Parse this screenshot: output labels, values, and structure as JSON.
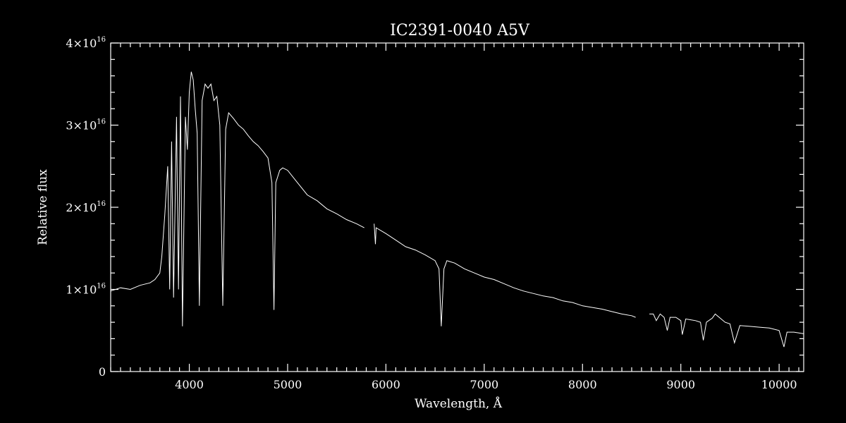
{
  "chart_data": {
    "type": "line",
    "title": "IC2391-0040   A5V",
    "xlabel": "Wavelength, Å",
    "ylabel": "Relative flux",
    "xlim": [
      3200,
      10250
    ],
    "ylim": [
      0,
      4e+16
    ],
    "x_ticks": [
      4000,
      5000,
      6000,
      7000,
      8000,
      9000,
      10000
    ],
    "x_tick_labels": [
      "4000",
      "5000",
      "6000",
      "7000",
      "8000",
      "9000",
      "10000"
    ],
    "y_ticks": [
      {
        "value": 0,
        "mantissa": "0",
        "exponent": ""
      },
      {
        "value": 1e+16,
        "mantissa": "1×10",
        "exponent": "16"
      },
      {
        "value": 2e+16,
        "mantissa": "2×10",
        "exponent": "16"
      },
      {
        "value": 3e+16,
        "mantissa": "3×10",
        "exponent": "16"
      },
      {
        "value": 4e+16,
        "mantissa": "4×10",
        "exponent": "16"
      }
    ],
    "series": [
      {
        "color": "#ffffff",
        "segments": [
          {
            "x": [
              3200,
              3300,
              3400,
              3500,
              3600,
              3650,
              3700,
              3720,
              3750,
              3780,
              3800,
              3820,
              3840,
              3870,
              3890,
              3910,
              3930,
              3960,
              3980,
              4000,
              4020,
              4040,
              4060,
              4080,
              4102,
              4130,
              4160,
              4190,
              4220,
              4250,
              4280,
              4310,
              4340,
              4370,
              4400,
              4450,
              4500,
              4550,
              4600,
              4650,
              4700,
              4750,
              4800,
              4840,
              4861,
              4880,
              4920,
              4950,
              5000,
              5100,
              5200,
              5300,
              5400,
              5500,
              5600,
              5700,
              5780
            ],
            "y": [
              9800000000000000.0,
              1.02e+16,
              1e+16,
              1.05e+16,
              1.08e+16,
              1.12e+16,
              1.2e+16,
              1.4e+16,
              1.9e+16,
              2.5e+16,
              1e+16,
              2.8e+16,
              9000000000000000.0,
              3.1e+16,
              1e+16,
              3.35e+16,
              5500000000000000.0,
              3.1e+16,
              2.7e+16,
              3.4e+16,
              3.65e+16,
              3.55e+16,
              3.2e+16,
              2.9e+16,
              8000000000000000.0,
              3.3e+16,
              3.5e+16,
              3.45e+16,
              3.5e+16,
              3.3e+16,
              3.35e+16,
              3e+16,
              8000000000000000.0,
              2.95e+16,
              3.15e+16,
              3.08e+16,
              3e+16,
              2.95e+16,
              2.87e+16,
              2.8e+16,
              2.75e+16,
              2.68e+16,
              2.6e+16,
              2.3e+16,
              7500000000000000.0,
              2.3e+16,
              2.45e+16,
              2.48e+16,
              2.45e+16,
              2.3e+16,
              2.15e+16,
              2.08e+16,
              1.98e+16,
              1.92e+16,
              1.85e+16,
              1.8e+16,
              1.75e+16
            ]
          },
          {
            "x": [
              5880,
              5893,
              5900,
              6000,
              6100,
              6200,
              6300,
              6400,
              6500,
              6540,
              6563,
              6590,
              6620,
              6700,
              6800,
              6900,
              7000,
              7100,
              7200,
              7300,
              7400,
              7500,
              7600,
              7700,
              7800,
              7900,
              8000,
              8100,
              8200,
              8300,
              8400,
              8500,
              8540
            ],
            "y": [
              1.8e+16,
              1.55e+16,
              1.75e+16,
              1.68e+16,
              1.6e+16,
              1.52e+16,
              1.48e+16,
              1.42e+16,
              1.35e+16,
              1.25e+16,
              5500000000000000.0,
              1.25e+16,
              1.35e+16,
              1.32e+16,
              1.25e+16,
              1.2e+16,
              1.15e+16,
              1.12e+16,
              1.07e+16,
              1.02e+16,
              9800000000000000.0,
              9500000000000000.0,
              9200000000000000.0,
              9000000000000000.0,
              8600000000000000.0,
              8400000000000000.0,
              8000000000000000.0,
              7800000000000000.0,
              7600000000000000.0,
              7300000000000000.0,
              7000000000000000.0,
              6800000000000000.0,
              6600000000000000.0
            ]
          },
          {
            "x": [
              8680,
              8720,
              8750,
              8790,
              8830,
              8862,
              8890,
              8950,
              9000,
              9015,
              9050,
              9100,
              9150,
              9200,
              9229,
              9260,
              9320,
              9350,
              9400,
              9450,
              9500,
              9546,
              9600,
              9700,
              9800,
              9900,
              10000,
              10049,
              10080,
              10150,
              10250
            ],
            "y": [
              7000000000000000.0,
              7000000000000000.0,
              6200000000000000.0,
              7000000000000000.0,
              6600000000000000.0,
              5000000000000000.0,
              6600000000000000.0,
              6600000000000000.0,
              6200000000000000.0,
              4500000000000000.0,
              6400000000000000.0,
              6300000000000000.0,
              6200000000000000.0,
              6000000000000000.0,
              3800000000000000.0,
              6000000000000000.0,
              6500000000000000.0,
              7000000000000000.0,
              6500000000000000.0,
              6000000000000000.0,
              5800000000000000.0,
              3500000000000000.0,
              5600000000000000.0,
              5500000000000000.0,
              5400000000000000.0,
              5300000000000000.0,
              5000000000000000.0,
              3000000000000000.0,
              4800000000000000.0,
              4800000000000000.0,
              4600000000000000.0
            ]
          }
        ]
      }
    ],
    "grid": false,
    "legend": "none"
  }
}
